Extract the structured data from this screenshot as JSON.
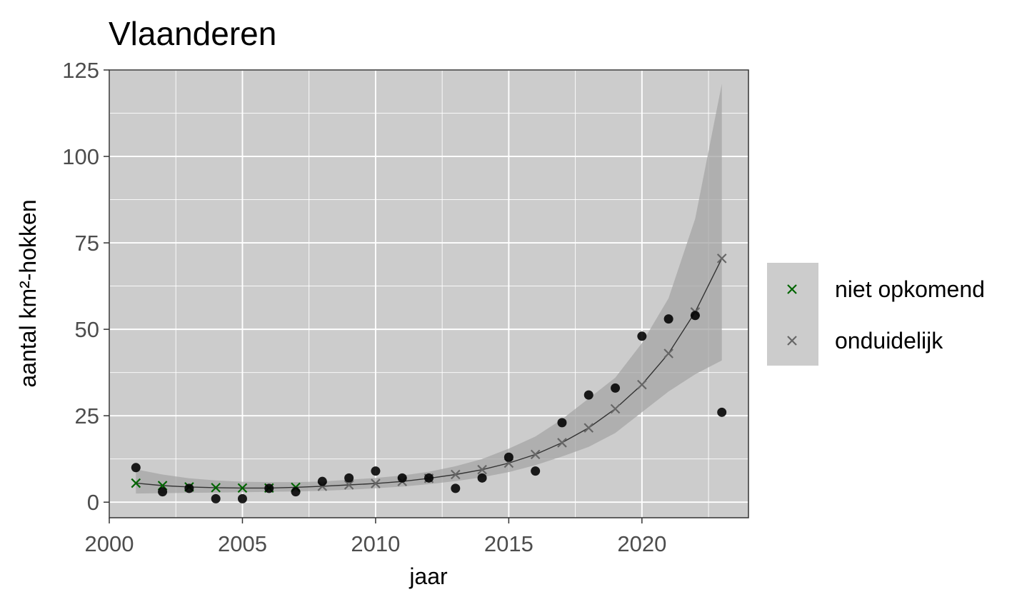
{
  "chart_data": {
    "type": "scatter",
    "title": "Vlaanderen",
    "xlabel": "jaar",
    "ylabel": "aantal km²-hokken",
    "xlim": [
      2000,
      2024
    ],
    "ylim": [
      -4.5,
      125
    ],
    "x_ticks": [
      2000,
      2005,
      2010,
      2015,
      2020
    ],
    "y_ticks": [
      0,
      25,
      50,
      75,
      100,
      125
    ],
    "x_tick_labels": [
      "2000",
      "2005",
      "2010",
      "2015",
      "2020"
    ],
    "y_tick_labels": [
      "0",
      "25",
      "50",
      "75",
      "100",
      "125"
    ],
    "grid": true,
    "legend_position": "right",
    "background_color": "#cccccc",
    "grid_color": "#ffffff",
    "observed": {
      "marker": "dot",
      "color": "#000000",
      "points": [
        {
          "x": 2001,
          "y": 10
        },
        {
          "x": 2002,
          "y": 3
        },
        {
          "x": 2003,
          "y": 4
        },
        {
          "x": 2004,
          "y": 1
        },
        {
          "x": 2005,
          "y": 1
        },
        {
          "x": 2006,
          "y": 4
        },
        {
          "x": 2007,
          "y": 3
        },
        {
          "x": 2008,
          "y": 6
        },
        {
          "x": 2009,
          "y": 7
        },
        {
          "x": 2010,
          "y": 9
        },
        {
          "x": 2011,
          "y": 7
        },
        {
          "x": 2012,
          "y": 7
        },
        {
          "x": 2013,
          "y": 4
        },
        {
          "x": 2014,
          "y": 7
        },
        {
          "x": 2015,
          "y": 13
        },
        {
          "x": 2016,
          "y": 9
        },
        {
          "x": 2017,
          "y": 23
        },
        {
          "x": 2018,
          "y": 31
        },
        {
          "x": 2019,
          "y": 33
        },
        {
          "x": 2020,
          "y": 48
        },
        {
          "x": 2021,
          "y": 53
        },
        {
          "x": 2022,
          "y": 54
        },
        {
          "x": 2023,
          "y": 26
        }
      ]
    },
    "fit": {
      "x": [
        2001,
        2002,
        2003,
        2004,
        2005,
        2006,
        2007,
        2008,
        2009,
        2010,
        2011,
        2012,
        2013,
        2014,
        2015,
        2016,
        2017,
        2018,
        2019,
        2020,
        2021,
        2022,
        2023
      ],
      "y": [
        5.5,
        4.8,
        4.4,
        4.2,
        4.1,
        4.1,
        4.3,
        4.6,
        5.0,
        5.4,
        6.0,
        6.9,
        8.0,
        9.4,
        11.3,
        13.8,
        17.2,
        21.5,
        27.0,
        34.0,
        43.0,
        55.0,
        70.5
      ],
      "lower": [
        2.5,
        2.6,
        2.7,
        2.8,
        2.9,
        3.0,
        3.1,
        3.3,
        3.6,
        4.0,
        4.5,
        5.2,
        6.1,
        7.2,
        8.7,
        10.7,
        13.2,
        16.0,
        20.0,
        26.0,
        32.0,
        37.0,
        41.0
      ],
      "upper": [
        9.5,
        8.0,
        6.9,
        6.3,
        5.9,
        5.8,
        5.8,
        6.0,
        6.5,
        7.0,
        7.7,
        8.8,
        10.4,
        12.5,
        15.5,
        19.0,
        24.0,
        30.0,
        36.0,
        46.0,
        59.0,
        82.0,
        121.0
      ],
      "line_color": "#333333",
      "band_color": "#a6a6a6"
    },
    "series": [
      {
        "name": "niet opkomend",
        "color": "#006400",
        "marker": "x",
        "x": [
          2001,
          2002,
          2003,
          2004,
          2005,
          2006,
          2007
        ]
      },
      {
        "name": "onduidelijk",
        "color": "#666666",
        "marker": "x",
        "x": [
          2008,
          2009,
          2010,
          2011,
          2012,
          2013,
          2014,
          2015,
          2016,
          2017,
          2018,
          2019,
          2020,
          2021,
          2022,
          2023
        ]
      }
    ]
  }
}
